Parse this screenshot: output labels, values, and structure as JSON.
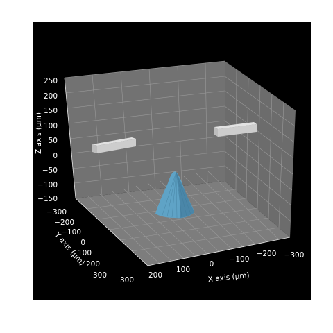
{
  "chart_data": {
    "type": "3d-scene",
    "title": "",
    "xlabel": "X axis (μm)",
    "ylabel": "Y axis (μm)",
    "zlabel": "Z axis (μm)",
    "x_ticks": [
      "−300",
      "−200",
      "−100",
      "0",
      "100",
      "200",
      "300"
    ],
    "y_ticks": [
      "−300",
      "−200",
      "−100",
      "0",
      "100",
      "200",
      "300"
    ],
    "z_ticks": [
      "−150",
      "−100",
      "−50",
      "0",
      "50",
      "100",
      "150",
      "200",
      "250"
    ],
    "xlim": [
      -300,
      300
    ],
    "ylim": [
      -300,
      300
    ],
    "zlim": [
      -150,
      250
    ],
    "objects": [
      {
        "name": "cone",
        "kind": "surface",
        "color": "#5fa8cc",
        "center": [
          0,
          0
        ],
        "base_radius": 35,
        "z_range": [
          -150,
          10
        ]
      },
      {
        "name": "bar-left",
        "kind": "box",
        "color": "#c8c8c8",
        "z": 30
      },
      {
        "name": "bar-right",
        "kind": "box",
        "color": "#c8c8c8",
        "z": 70
      }
    ],
    "grid": true,
    "pane_color": "#6e6e6e",
    "background": "#000000"
  }
}
